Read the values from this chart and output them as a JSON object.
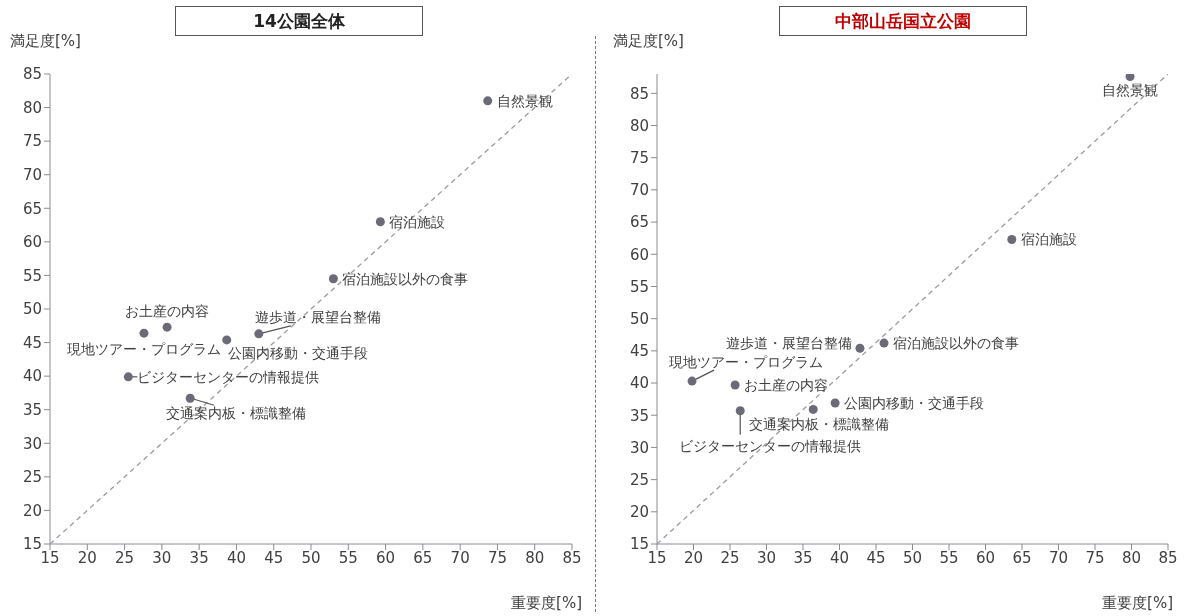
{
  "chart_data": [
    {
      "type": "scatter",
      "title": "14公園全体",
      "xlabel": "重要度[%]",
      "ylabel": "満足度[%]",
      "xlim": [
        15,
        85
      ],
      "ylim": [
        15,
        85
      ],
      "xticks": [
        15,
        20,
        25,
        30,
        35,
        40,
        45,
        50,
        55,
        60,
        65,
        70,
        75,
        80,
        85
      ],
      "yticks": [
        15,
        20,
        25,
        30,
        35,
        40,
        45,
        50,
        55,
        60,
        65,
        70,
        75,
        80,
        85
      ],
      "series": [
        {
          "type": "scatter",
          "marker": "circle",
          "color": "#6b6b78",
          "x": [
            73.7,
            59.3,
            53.0,
            30.7,
            27.6,
            38.7,
            43.0,
            25.5,
            33.8
          ],
          "values": [
            81.0,
            63.0,
            54.5,
            47.3,
            46.4,
            45.4,
            46.3,
            39.9,
            36.7
          ]
        },
        {
          "type": "line",
          "color": "#9a9aa2",
          "line_style": "dashed",
          "x": [
            15,
            85
          ],
          "values": [
            15,
            85
          ]
        }
      ],
      "annotations": [
        {
          "text": "自然景観",
          "x": 73.7,
          "y": 81.0
        },
        {
          "text": "宿泊施設",
          "x": 59.3,
          "y": 63.0
        },
        {
          "text": "宿泊施設以外の食事",
          "x": 53.0,
          "y": 54.5
        },
        {
          "text": "お土産の内容",
          "x": 30.7,
          "y": 47.3
        },
        {
          "text": "現地ツアー・プログラム",
          "x": 27.6,
          "y": 46.4
        },
        {
          "text": "公園内移動・交通手段",
          "x": 38.7,
          "y": 45.4
        },
        {
          "text": "遊歩道・展望台整備",
          "x": 43.0,
          "y": 46.3
        },
        {
          "text": "ビジターセンターの情報提供",
          "x": 25.5,
          "y": 39.9
        },
        {
          "text": "交通案内板・標識整備",
          "x": 33.8,
          "y": 36.7
        }
      ]
    },
    {
      "type": "scatter",
      "title": "中部山岳国立公園",
      "xlabel": "重要度[%]",
      "ylabel": "満足度[%]",
      "xlim": [
        15,
        85
      ],
      "ylim": [
        15,
        88
      ],
      "xticks": [
        15,
        20,
        25,
        30,
        35,
        40,
        45,
        50,
        55,
        60,
        65,
        70,
        75,
        80,
        85
      ],
      "yticks": [
        15,
        20,
        25,
        30,
        35,
        40,
        45,
        50,
        55,
        60,
        65,
        70,
        75,
        80,
        85
      ],
      "series": [
        {
          "type": "scatter",
          "marker": "circle",
          "color": "#6b6b78",
          "x": [
            79.8,
            63.6,
            46.1,
            42.8,
            19.8,
            25.7,
            39.4,
            36.4,
            26.4
          ],
          "values": [
            87.6,
            62.3,
            46.2,
            45.4,
            40.3,
            39.7,
            36.9,
            35.9,
            35.7
          ]
        },
        {
          "type": "line",
          "color": "#9a9aa2",
          "line_style": "dashed",
          "x": [
            15,
            85
          ],
          "values": [
            15,
            88
          ]
        }
      ],
      "annotations": [
        {
          "text": "自然景観",
          "x": 79.8,
          "y": 87.6
        },
        {
          "text": "宿泊施設",
          "x": 63.6,
          "y": 62.3
        },
        {
          "text": "宿泊施設以外の食事",
          "x": 46.1,
          "y": 46.2
        },
        {
          "text": "遊歩道・展望台整備",
          "x": 42.8,
          "y": 45.4
        },
        {
          "text": "現地ツアー・プログラム",
          "x": 19.8,
          "y": 40.3
        },
        {
          "text": "お土産の内容",
          "x": 25.7,
          "y": 39.7
        },
        {
          "text": "公園内移動・交通手段",
          "x": 39.4,
          "y": 36.9
        },
        {
          "text": "交通案内板・標識整備",
          "x": 36.4,
          "y": 35.9
        },
        {
          "text": "ビジターセンターの情報提供",
          "x": 26.4,
          "y": 35.7
        }
      ]
    }
  ]
}
